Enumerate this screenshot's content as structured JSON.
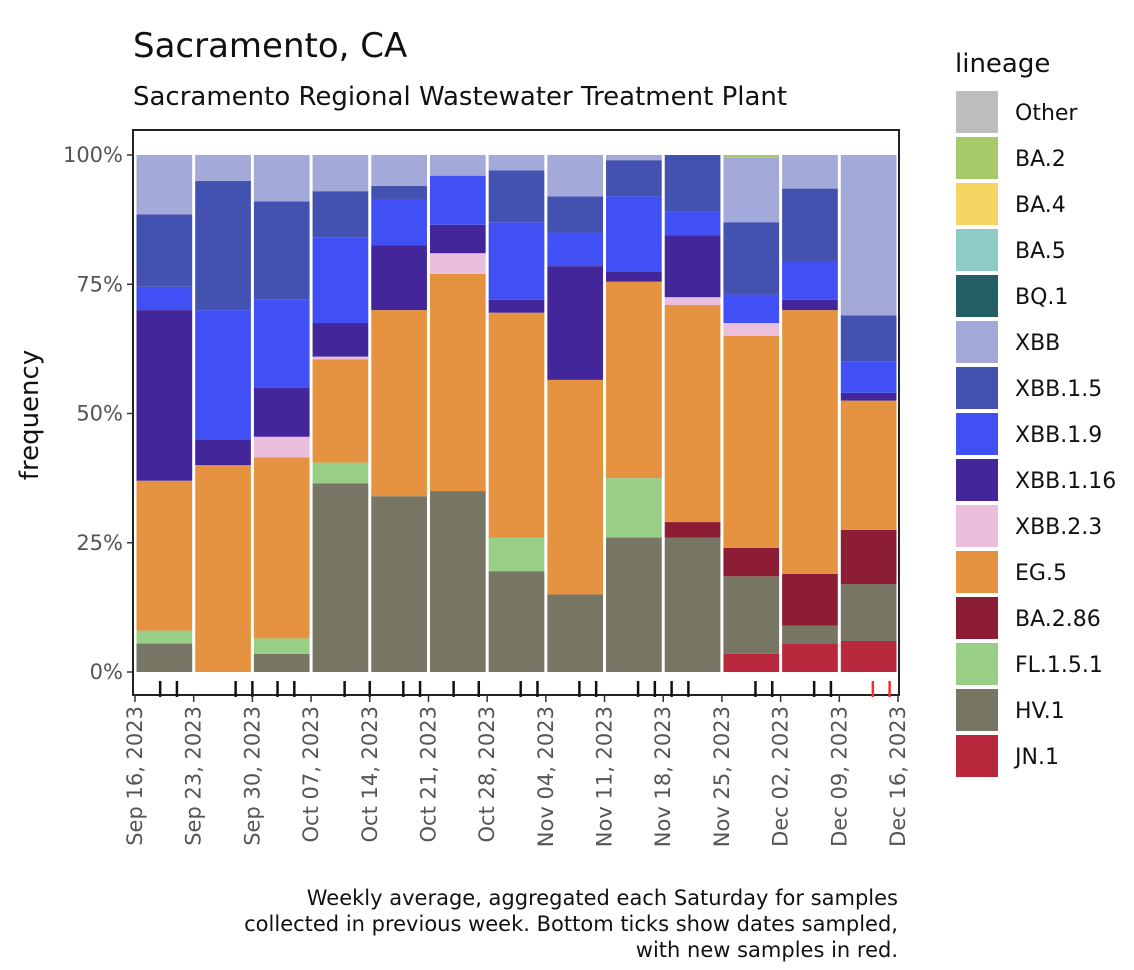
{
  "chart_data": {
    "type": "bar",
    "stacked": true,
    "title": "Sacramento, CA",
    "subtitle": "Sacramento Regional Wastewater Treatment Plant",
    "ylabel": "frequency",
    "y_ticks": [
      "0%",
      "25%",
      "50%",
      "75%",
      "100%"
    ],
    "ylim": [
      0,
      1
    ],
    "x_ticks": [
      "Sep 16, 2023",
      "Sep 23, 2023",
      "Sep 30, 2023",
      "Oct 07, 2023",
      "Oct 14, 2023",
      "Oct 21, 2023",
      "Oct 28, 2023",
      "Nov 04, 2023",
      "Nov 11, 2023",
      "Nov 18, 2023",
      "Nov 25, 2023",
      "Dec 02, 2023",
      "Dec 09, 2023",
      "Dec 16, 2023"
    ],
    "bars": [
      {
        "week": "Sep 16, 2023",
        "values": {
          "JN.1": 0,
          "HV.1": 0.055,
          "FL.1.5.1": 0.025,
          "BA.2.86": 0,
          "EG.5": 0.29,
          "XBB.2.3": 0,
          "XBB.1.16": 0.33,
          "XBB.1.9": 0.045,
          "XBB.1.5": 0.14,
          "XBB": 0.115,
          "BQ.1": 0,
          "BA.5": 0,
          "BA.4": 0,
          "BA.2": 0,
          "Other": 0
        }
      },
      {
        "week": "Sep 23, 2023",
        "values": {
          "JN.1": 0,
          "HV.1": 0,
          "FL.1.5.1": 0,
          "BA.2.86": 0,
          "EG.5": 0.4,
          "XBB.2.3": 0,
          "XBB.1.16": 0.05,
          "XBB.1.9": 0.25,
          "XBB.1.5": 0.25,
          "XBB": 0.05,
          "BQ.1": 0,
          "BA.5": 0,
          "BA.4": 0,
          "BA.2": 0,
          "Other": 0
        }
      },
      {
        "week": "Sep 30, 2023",
        "values": {
          "JN.1": 0,
          "HV.1": 0.035,
          "FL.1.5.1": 0.03,
          "BA.2.86": 0,
          "EG.5": 0.35,
          "XBB.2.3": 0.04,
          "XBB.1.16": 0.095,
          "XBB.1.9": 0.17,
          "XBB.1.5": 0.19,
          "XBB": 0.09,
          "BQ.1": 0,
          "BA.5": 0,
          "BA.4": 0,
          "BA.2": 0,
          "Other": 0
        }
      },
      {
        "week": "Oct 07, 2023",
        "values": {
          "JN.1": 0,
          "HV.1": 0.365,
          "FL.1.5.1": 0.04,
          "BA.2.86": 0,
          "EG.5": 0.2,
          "XBB.2.3": 0.005,
          "XBB.1.16": 0.065,
          "XBB.1.9": 0.165,
          "XBB.1.5": 0.09,
          "XBB": 0.07,
          "BQ.1": 0,
          "BA.5": 0,
          "BA.4": 0,
          "BA.2": 0,
          "Other": 0
        }
      },
      {
        "week": "Oct 14, 2023",
        "values": {
          "JN.1": 0,
          "HV.1": 0.34,
          "FL.1.5.1": 0,
          "BA.2.86": 0,
          "EG.5": 0.36,
          "XBB.2.3": 0,
          "XBB.1.16": 0.125,
          "XBB.1.9": 0.09,
          "XBB.1.5": 0.025,
          "XBB": 0.06,
          "BQ.1": 0,
          "BA.5": 0,
          "BA.4": 0,
          "BA.2": 0,
          "Other": 0
        }
      },
      {
        "week": "Oct 21, 2023",
        "values": {
          "JN.1": 0,
          "HV.1": 0.35,
          "FL.1.5.1": 0,
          "BA.2.86": 0,
          "EG.5": 0.42,
          "XBB.2.3": 0.04,
          "XBB.1.16": 0.055,
          "XBB.1.9": 0.095,
          "XBB.1.5": 0,
          "XBB": 0.04,
          "BQ.1": 0,
          "BA.5": 0,
          "BA.4": 0,
          "BA.2": 0,
          "Other": 0
        }
      },
      {
        "week": "Oct 28, 2023",
        "values": {
          "JN.1": 0,
          "HV.1": 0.195,
          "FL.1.5.1": 0.065,
          "BA.2.86": 0,
          "EG.5": 0.435,
          "XBB.2.3": 0,
          "XBB.1.16": 0.025,
          "XBB.1.9": 0.15,
          "XBB.1.5": 0.1,
          "XBB": 0.03,
          "BQ.1": 0,
          "BA.5": 0,
          "BA.4": 0,
          "BA.2": 0,
          "Other": 0
        }
      },
      {
        "week": "Nov 04, 2023",
        "values": {
          "JN.1": 0,
          "HV.1": 0.15,
          "FL.1.5.1": 0,
          "BA.2.86": 0,
          "EG.5": 0.415,
          "XBB.2.3": 0,
          "XBB.1.16": 0.22,
          "XBB.1.9": 0.065,
          "XBB.1.5": 0.07,
          "XBB": 0.08,
          "BQ.1": 0,
          "BA.5": 0,
          "BA.4": 0,
          "BA.2": 0,
          "Other": 0
        }
      },
      {
        "week": "Nov 11, 2023",
        "values": {
          "JN.1": 0,
          "HV.1": 0.26,
          "FL.1.5.1": 0.115,
          "BA.2.86": 0,
          "EG.5": 0.38,
          "XBB.2.3": 0,
          "XBB.1.16": 0.02,
          "XBB.1.9": 0.145,
          "XBB.1.5": 0.07,
          "XBB": 0.01,
          "BQ.1": 0,
          "BA.5": 0,
          "BA.4": 0,
          "BA.2": 0,
          "Other": 0
        }
      },
      {
        "week": "Nov 18, 2023",
        "values": {
          "JN.1": 0,
          "HV.1": 0.26,
          "FL.1.5.1": 0,
          "BA.2.86": 0.03,
          "EG.5": 0.42,
          "XBB.2.3": 0.015,
          "XBB.1.16": 0.12,
          "XBB.1.9": 0.045,
          "XBB.1.5": 0.11,
          "XBB": 0,
          "BQ.1": 0,
          "BA.5": 0,
          "BA.4": 0,
          "BA.2": 0,
          "Other": 0
        }
      },
      {
        "week": "Nov 25, 2023",
        "values": {
          "JN.1": 0.035,
          "HV.1": 0.15,
          "FL.1.5.1": 0,
          "BA.2.86": 0.055,
          "EG.5": 0.41,
          "XBB.2.3": 0.025,
          "XBB.1.16": 0,
          "XBB.1.9": 0.055,
          "XBB.1.5": 0.14,
          "XBB": 0.125,
          "BQ.1": 0,
          "BA.5": 0,
          "BA.4": 0,
          "BA.2": 0.005,
          "Other": 0
        }
      },
      {
        "week": "Dec 02, 2023",
        "values": {
          "JN.1": 0.055,
          "HV.1": 0.035,
          "FL.1.5.1": 0,
          "BA.2.86": 0.1,
          "EG.5": 0.51,
          "XBB.2.3": 0,
          "XBB.1.16": 0.02,
          "XBB.1.9": 0.075,
          "XBB.1.5": 0.14,
          "XBB": 0.065,
          "BQ.1": 0,
          "BA.5": 0,
          "BA.4": 0,
          "BA.2": 0,
          "Other": 0
        }
      },
      {
        "week": "Dec 09, 2023",
        "values": {
          "JN.1": 0.06,
          "HV.1": 0.11,
          "FL.1.5.1": 0,
          "BA.2.86": 0.105,
          "EG.5": 0.25,
          "XBB.2.3": 0,
          "XBB.1.16": 0.015,
          "XBB.1.9": 0.06,
          "XBB.1.5": 0.09,
          "XBB": 0.31,
          "BQ.1": 0,
          "BA.5": 0,
          "BA.4": 0,
          "BA.2": 0,
          "Other": 0
        }
      }
    ],
    "sample_ticks": [
      {
        "date": "Sep 19, 2023",
        "new": false
      },
      {
        "date": "Sep 21, 2023",
        "new": false
      },
      {
        "date": "Sep 28, 2023",
        "new": false
      },
      {
        "date": "Sep 30, 2023",
        "new": false
      },
      {
        "date": "Oct 03, 2023",
        "new": false
      },
      {
        "date": "Oct 05, 2023",
        "new": false
      },
      {
        "date": "Oct 11, 2023",
        "new": false
      },
      {
        "date": "Oct 14, 2023",
        "new": false
      },
      {
        "date": "Oct 18, 2023",
        "new": false
      },
      {
        "date": "Oct 20, 2023",
        "new": false
      },
      {
        "date": "Oct 24, 2023",
        "new": false
      },
      {
        "date": "Oct 27, 2023",
        "new": false
      },
      {
        "date": "Nov 01, 2023",
        "new": false
      },
      {
        "date": "Nov 03, 2023",
        "new": false
      },
      {
        "date": "Nov 08, 2023",
        "new": false
      },
      {
        "date": "Nov 10, 2023",
        "new": false
      },
      {
        "date": "Nov 15, 2023",
        "new": false
      },
      {
        "date": "Nov 17, 2023",
        "new": false
      },
      {
        "date": "Nov 19, 2023",
        "new": false
      },
      {
        "date": "Nov 21, 2023",
        "new": false
      },
      {
        "date": "Nov 29, 2023",
        "new": false
      },
      {
        "date": "Dec 01, 2023",
        "new": false
      },
      {
        "date": "Dec 06, 2023",
        "new": false
      },
      {
        "date": "Dec 08, 2023",
        "new": false
      },
      {
        "date": "Dec 13, 2023",
        "new": true
      },
      {
        "date": "Dec 15, 2023",
        "new": true
      }
    ],
    "legend": {
      "title": "lineage",
      "placement": "right",
      "items": [
        {
          "name": "Other",
          "color": "#bebebe"
        },
        {
          "name": "BA.2",
          "color": "#a6c96a"
        },
        {
          "name": "BA.4",
          "color": "#f5d461"
        },
        {
          "name": "BA.5",
          "color": "#8fcbc5"
        },
        {
          "name": "BQ.1",
          "color": "#245f66"
        },
        {
          "name": "XBB",
          "color": "#a3a9d9"
        },
        {
          "name": "XBB.1.5",
          "color": "#4351b0"
        },
        {
          "name": "XBB.1.9",
          "color": "#4050f5"
        },
        {
          "name": "XBB.1.16",
          "color": "#44269b"
        },
        {
          "name": "XBB.2.3",
          "color": "#ecbede"
        },
        {
          "name": "EG.5",
          "color": "#e59340"
        },
        {
          "name": "BA.2.86",
          "color": "#8c1d35"
        },
        {
          "name": "FL.1.5.1",
          "color": "#99ce86"
        },
        {
          "name": "HV.1",
          "color": "#777564"
        },
        {
          "name": "JN.1",
          "color": "#ba283e"
        }
      ]
    },
    "caption": [
      "Weekly average, aggregated each Saturday for samples",
      "collected in previous week. Bottom ticks show dates sampled,",
      "with new samples in red."
    ]
  }
}
